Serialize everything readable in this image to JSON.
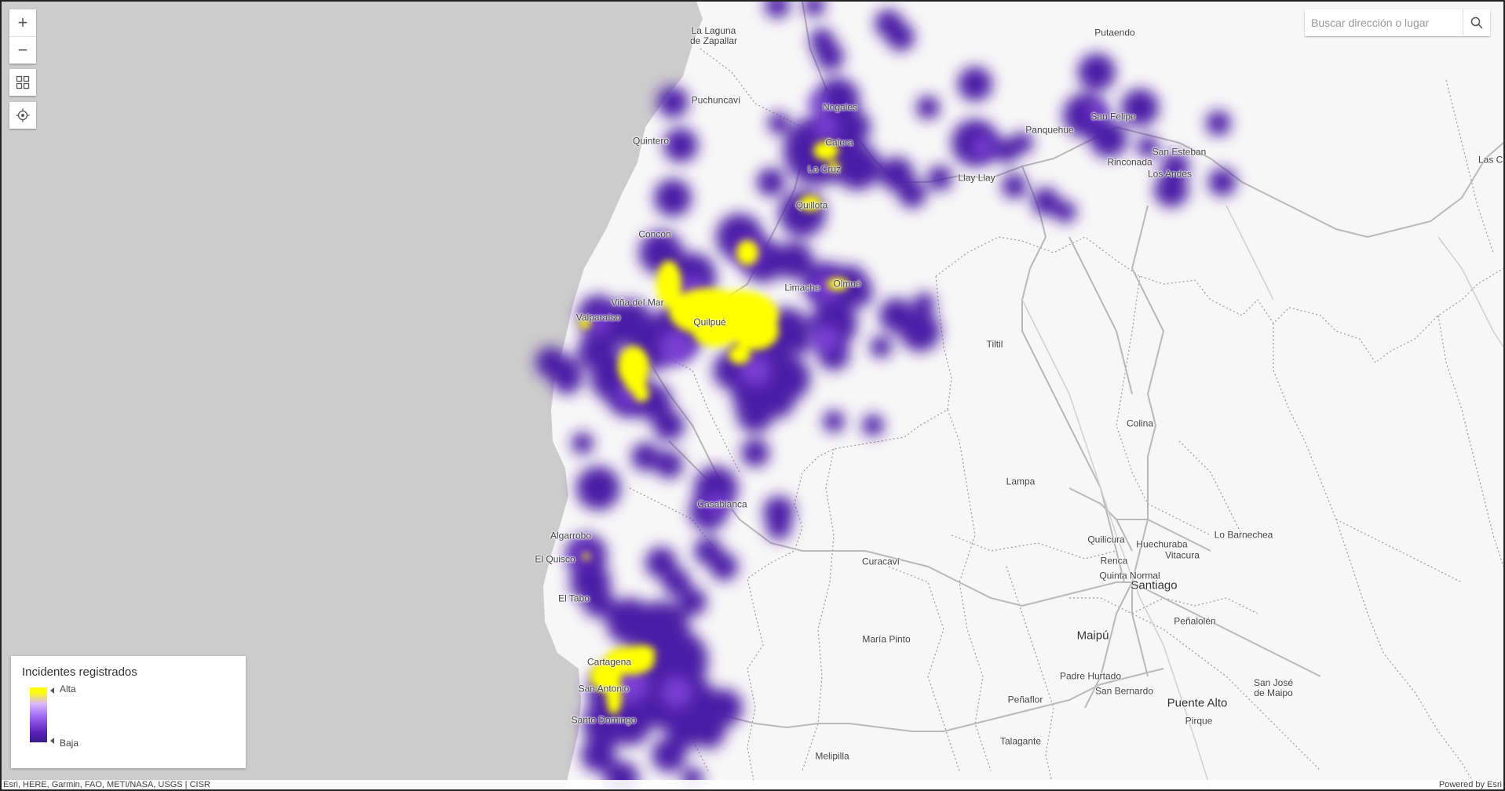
{
  "search": {
    "placeholder": "Buscar dirección o lugar"
  },
  "zoom": {
    "in": "+",
    "out": "−"
  },
  "legend": {
    "title": "Incidentes registrados",
    "high": "Alta",
    "low": "Baja"
  },
  "attribution": {
    "sources": "Esri, HERE, Garmin, FAO, METI/NASA, USGS | CISR",
    "powered": "Powered by Esri"
  },
  "colors": {
    "ocean": "#cccccc",
    "land": "#f7f7f7",
    "heat_low": "#4b1fa6",
    "heat_mid": "#7a3fd4",
    "heat_high": "#ffff00"
  },
  "places": {
    "la_laguna": "La Laguna\nde Zapallar",
    "putaendo": "Putaendo",
    "puchuncavi": "Puchuncaví",
    "nogales": "Nogales",
    "quintero": "Quintero",
    "calera": "Calera",
    "panquehue": "Panquehue",
    "san_felipe": "San Felipe",
    "san_esteban": "San Esteban",
    "rinconada": "Rinconada",
    "las_cu": "Las Cu",
    "la_cruz": "La Cruz",
    "llay_llay": "Llay Llay",
    "los_andes": "Los Andes",
    "quillota": "Quillota",
    "concon": "Concón",
    "limache": "Limache",
    "olmue": "Olmué",
    "vina": "Viña del Mar",
    "valparaiso": "Valparaíso",
    "quilpue": "Quilpué",
    "tiltil": "Tiltil",
    "colina": "Colina",
    "lampa": "Lampa",
    "casablanca": "Casablanca",
    "lo_barnechea": "Lo Barnechea",
    "quilicura": "Quilicura",
    "huechuraba": "Huechuraba",
    "vitacura": "Vitacura",
    "algarrobo": "Algarrobo",
    "el_quisco": "El Quisco",
    "curacavi": "Curacaví",
    "renca": "Renca",
    "quinta_normal": "Quinta Normal",
    "santiago": "Santiago",
    "el_tabo": "El Tabo",
    "penalolen": "Peñalolén",
    "maria_pinto": "María Pinto",
    "maipu": "Maipú",
    "cartagena": "Cartagena",
    "padre_hurtado": "Padre Hurtado",
    "san_jose": "San José\nde Maipo",
    "san_antonio": "San Antonio",
    "san_bernardo": "San Bernardo",
    "penaflor": "Peñaflor",
    "puente_alto": "Puente Alto",
    "santo_domingo": "Santo Domingo",
    "pirque": "Pirque",
    "talagante": "Talagante",
    "melipilla": "Melipilla"
  }
}
